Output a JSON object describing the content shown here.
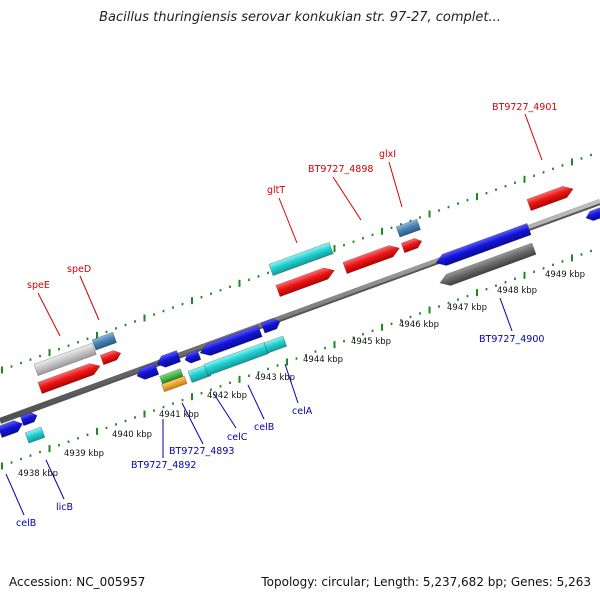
{
  "title": "Bacillus thuringiensis serovar konkukian str. 97-27, complet...",
  "footer": {
    "accession": "Accession: NC_005957",
    "summary": "Topology: circular; Length: 5,237,682 bp; Genes: 5,263"
  },
  "colors": {
    "backbone": "#8a8a8a",
    "tick_line": "#1e8a1e",
    "label_red": "#d80000",
    "label_blue": "#0000b8",
    "gene_red": "#e81818",
    "gene_blue": "#1414d8",
    "gene_cyan": "#22d0d0",
    "gene_gray": "#c8c8c8",
    "gene_dark_gray": "#6a6a6a",
    "gene_steel": "#4a82b4",
    "gene_green": "#30b030",
    "gene_orange": "#f0a020"
  },
  "scale_labels": [
    "4938 kbp",
    "4939 kbp",
    "4940 kbp",
    "4941 kbp",
    "4942 kbp",
    "4943 kbp",
    "4944 kbp",
    "4945 kbp",
    "4946 kbp",
    "4947 kbp",
    "4948 kbp",
    "4949 kbp"
  ],
  "upper_labels": [
    "speE",
    "speD",
    "gltT",
    "BT9727_4898",
    "glxI",
    "BT9727_4901"
  ],
  "lower_labels": [
    "celB",
    "licB",
    "BT9727_4892",
    "BT9727_4893",
    "celC",
    "celB",
    "celA",
    "BT9727_4900"
  ],
  "icons": {
    "gene_arrow": "arrow-block-icon"
  }
}
